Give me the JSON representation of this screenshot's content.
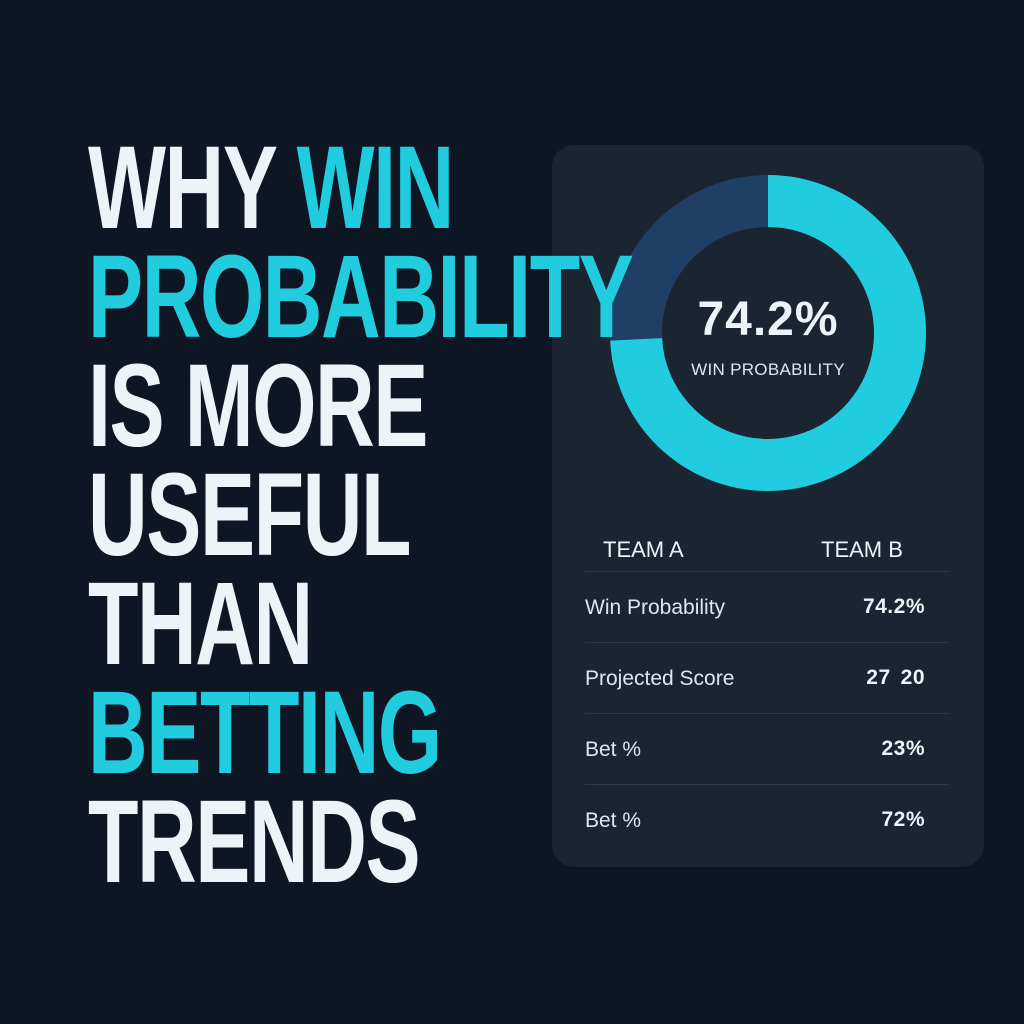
{
  "headline": {
    "lines": [
      [
        {
          "text": "WHY ",
          "accent": false
        },
        {
          "text": "WIN",
          "accent": true
        }
      ],
      [
        {
          "text": "PROBABILITY",
          "accent": true
        }
      ],
      [
        {
          "text": "IS MORE",
          "accent": false
        }
      ],
      [
        {
          "text": "USEFUL",
          "accent": false
        }
      ],
      [
        {
          "text": "THAN",
          "accent": false
        }
      ],
      [
        {
          "text": "BETTING",
          "accent": true
        }
      ],
      [
        {
          "text": "TRENDS",
          "accent": false
        }
      ]
    ]
  },
  "donut": {
    "value_label": "74.2%",
    "caption": "WIN PROBABILITY",
    "fraction": 0.742,
    "colors": {
      "primary": "#22ccdf",
      "secondary": "#1f3f66"
    }
  },
  "table": {
    "headers": {
      "team_a": "TEAM A",
      "team_b": "TEAM B"
    },
    "rows": [
      {
        "label": "Win Probability",
        "values": [
          "74.2%"
        ]
      },
      {
        "label": "Projected Score",
        "values": [
          "27",
          "20"
        ]
      },
      {
        "label": "Bet %",
        "values": [
          "23%"
        ]
      },
      {
        "label": "Bet %",
        "values": [
          "72%"
        ]
      }
    ]
  },
  "colors": {
    "background": "#0f1623",
    "card": "#1b2431",
    "accent": "#22ccdf",
    "text": "#eef3f7"
  }
}
